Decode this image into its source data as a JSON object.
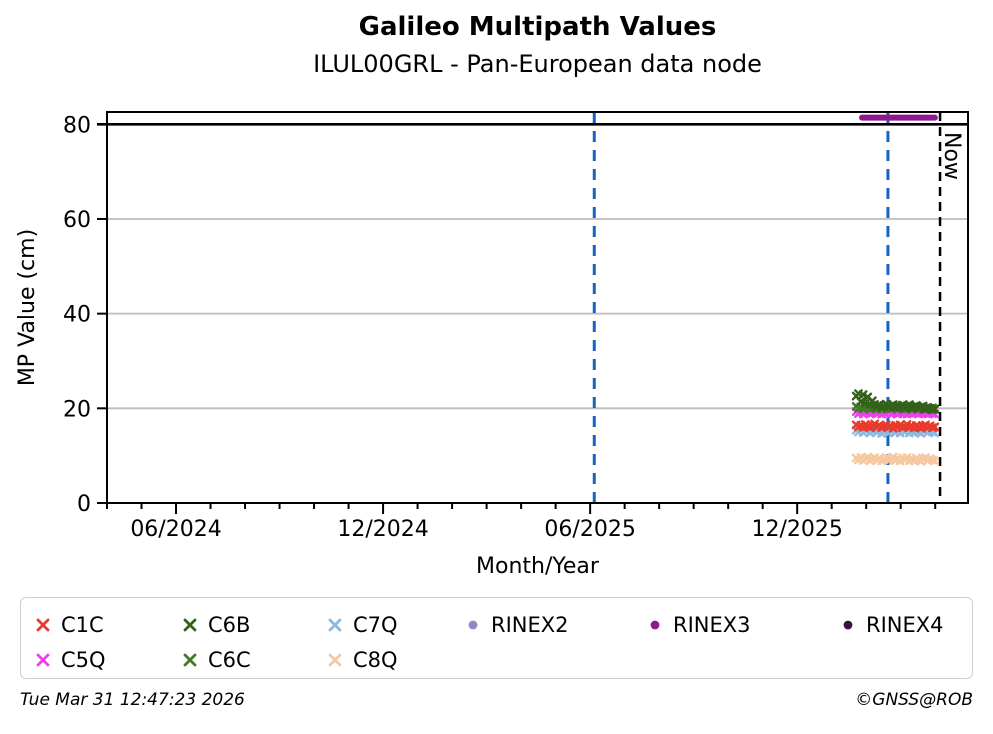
{
  "header": {
    "title": "Galileo Multipath Values",
    "subtitle": "ILUL00GRL - Pan-European data node"
  },
  "footer": {
    "timestamp": "Tue Mar 31 12:47:23 2026",
    "credit": "©GNSS@ROB"
  },
  "chart_data": {
    "type": "scatter",
    "title": "Galileo Multipath Values",
    "subtitle": "ILUL00GRL - Pan-European data node",
    "xlabel": "Month/Year",
    "ylabel": "MP Value (cm)",
    "ylim": [
      0,
      82.6
    ],
    "y_ticks": [
      0,
      20,
      40,
      60,
      80
    ],
    "gridlines_y": [
      20,
      40,
      60
    ],
    "hline": {
      "y": 80,
      "color": "#000000",
      "width": 2.6
    },
    "x_axis": {
      "unit": "months since 2024-04",
      "range": [
        0,
        24.95
      ],
      "minor_tick_months": 24,
      "major_ticks": [
        {
          "pos": 2,
          "label": "06/2024"
        },
        {
          "pos": 8,
          "label": "12/2024"
        },
        {
          "pos": 14,
          "label": "06/2025"
        },
        {
          "pos": 20,
          "label": "12/2025"
        }
      ]
    },
    "vlines": [
      {
        "name": "event-line-1",
        "x": 14.12,
        "color": "#1565c0",
        "width": 3,
        "dash": "11 8"
      },
      {
        "name": "event-line-2",
        "x": 22.63,
        "color": "#1565c0",
        "width": 3,
        "dash": "11 8"
      },
      {
        "name": "now-line",
        "x": 24.14,
        "color": "#000000",
        "width": 2.5,
        "dash": "9 6",
        "label": "Now"
      }
    ],
    "series": [
      {
        "name": "C8Q",
        "color": "#f6c8a0",
        "marker": "x",
        "x_start": 21.71,
        "x_step": 0.067,
        "values": [
          9.5,
          9.1,
          9.6,
          9.0,
          9.4,
          9.7,
          8.9,
          9.3,
          9.6,
          9.0,
          9.4,
          8.9,
          9.2,
          9.6,
          9.0,
          9.3,
          9.7,
          9.0,
          9.4,
          8.9,
          9.5,
          9.1,
          9.6,
          8.9,
          9.3,
          9.0,
          9.5,
          9.1,
          8.8,
          9.3,
          9.6,
          9.0,
          9.4,
          9.1,
          8.9
        ]
      },
      {
        "name": "C7Q",
        "color": "#8bb9e2",
        "marker": "x",
        "x_start": 21.71,
        "x_step": 0.067,
        "values": [
          15.4,
          15.0,
          15.6,
          14.9,
          15.3,
          15.7,
          14.8,
          15.2,
          15.5,
          14.9,
          15.3,
          14.7,
          15.1,
          15.5,
          14.8,
          15.2,
          15.6,
          14.9,
          15.3,
          14.8,
          15.4,
          15.0,
          15.5,
          14.8,
          15.2,
          14.9,
          15.4,
          15.0,
          14.7,
          15.2,
          15.5,
          14.9,
          15.3,
          15.0,
          14.8
        ]
      },
      {
        "name": "RINEX2",
        "color": "#9186ca",
        "marker": "dot",
        "x": [
          21.92,
          22.22,
          22.52,
          22.82,
          23.12,
          23.42
        ],
        "values": [
          15.9,
          16.0,
          15.8,
          15.9,
          16.0,
          15.8
        ]
      },
      {
        "name": "C1C",
        "color": "#e8392a",
        "marker": "x",
        "x_start": 21.71,
        "x_step": 0.067,
        "values": [
          16.5,
          16.1,
          16.4,
          16.0,
          16.6,
          16.2,
          15.9,
          16.3,
          16.7,
          16.1,
          16.4,
          15.9,
          16.2,
          16.5,
          16.0,
          16.3,
          15.8,
          16.4,
          16.1,
          16.5,
          15.9,
          16.2,
          16.6,
          16.0,
          16.3,
          15.9,
          16.4,
          16.1,
          15.8,
          16.2,
          16.5,
          16.0,
          16.3,
          15.9,
          16.1
        ]
      },
      {
        "name": "C5Q",
        "color": "#ee3ff0",
        "marker": "x",
        "x_start": 21.71,
        "x_step": 0.067,
        "values": [
          19.3,
          18.9,
          19.2,
          18.8,
          19.1,
          19.4,
          18.8,
          19.0,
          19.3,
          18.9,
          19.2,
          18.8,
          19.1,
          18.9,
          19.3,
          18.8,
          19.0,
          19.2,
          18.8,
          19.1,
          18.9,
          19.2,
          18.8,
          19.0,
          18.9,
          19.1,
          19.3,
          18.8,
          19.0,
          18.9,
          19.1,
          18.8,
          19.0,
          18.9,
          18.8
        ]
      },
      {
        "name": "C6C",
        "color": "#417a22",
        "marker": "x",
        "x_start": 21.71,
        "x_step": 0.067,
        "values": [
          20.4,
          20.0,
          20.3,
          19.9,
          20.2,
          20.5,
          19.8,
          20.1,
          20.4,
          19.9,
          20.2,
          19.8,
          20.3,
          20.0,
          20.4,
          19.9,
          20.1,
          20.3,
          19.8,
          20.2,
          20.0,
          20.3,
          19.9,
          20.1,
          19.8,
          20.2,
          20.4,
          19.9,
          20.1,
          19.8,
          20.0,
          20.2,
          19.9,
          20.1,
          19.8
        ]
      },
      {
        "name": "C6B",
        "color": "#33611a",
        "marker": "x",
        "x_start": 21.71,
        "x_step": 0.067,
        "values": [
          22.6,
          23.1,
          21.4,
          22.9,
          21.1,
          22.4,
          20.9,
          21.6,
          20.8,
          20.4,
          20.7,
          20.2,
          20.6,
          20.9,
          20.3,
          20.5,
          20.8,
          20.2,
          20.6,
          20.4,
          20.7,
          20.1,
          20.5,
          20.8,
          20.0,
          20.4,
          20.6,
          19.9,
          20.3,
          20.5,
          19.8,
          20.2,
          20.0,
          19.7,
          19.9
        ]
      },
      {
        "name": "RINEX3",
        "color": "#8e198e",
        "marker": "line",
        "line_width": 6,
        "x": [
          21.88,
          23.99
        ],
        "values": [
          81.4,
          81.4
        ]
      },
      {
        "name": "RINEX4",
        "color": "#3a1040",
        "marker": "dot",
        "x": [],
        "values": []
      }
    ],
    "legend": {
      "rows": [
        [
          "C1C",
          "C6B",
          "C7Q",
          "RINEX2",
          "RINEX3",
          "RINEX4"
        ],
        [
          "C5Q",
          "C6C",
          "C8Q"
        ]
      ]
    }
  }
}
